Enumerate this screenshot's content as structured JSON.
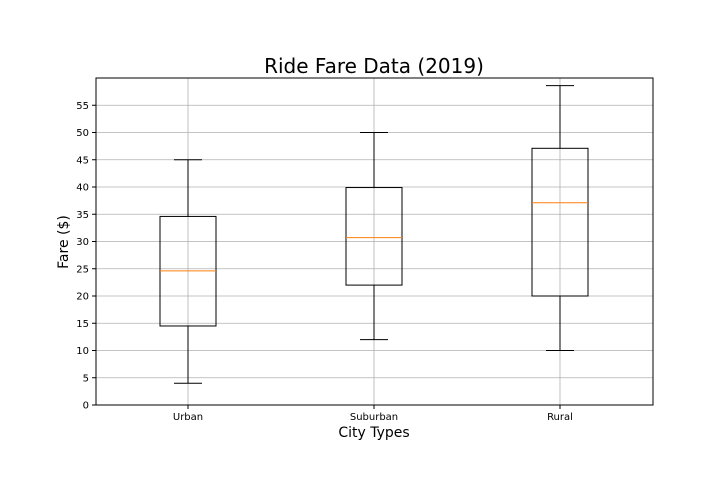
{
  "chart_data": {
    "type": "box",
    "title": "Ride Fare Data (2019)",
    "xlabel": "City Types",
    "ylabel": "Fare ($)",
    "categories": [
      "Urban",
      "Suburban",
      "Rural"
    ],
    "ylim": [
      0,
      60
    ],
    "yticks": [
      0,
      5,
      10,
      15,
      20,
      25,
      30,
      35,
      40,
      45,
      50,
      55
    ],
    "grid": true,
    "boxes": [
      {
        "category": "Urban",
        "whisker_low": 4,
        "q1": 14.5,
        "median": 24.6,
        "q3": 34.6,
        "whisker_high": 45
      },
      {
        "category": "Suburban",
        "whisker_low": 12,
        "q1": 22,
        "median": 30.7,
        "q3": 39.9,
        "whisker_high": 50
      },
      {
        "category": "Rural",
        "whisker_low": 10,
        "q1": 20,
        "median": 37.1,
        "q3": 47.1,
        "whisker_high": 58.6
      }
    ],
    "colors": {
      "box": "#000000",
      "median": "#ff7f0e",
      "grid": "#b0b0b0"
    }
  }
}
